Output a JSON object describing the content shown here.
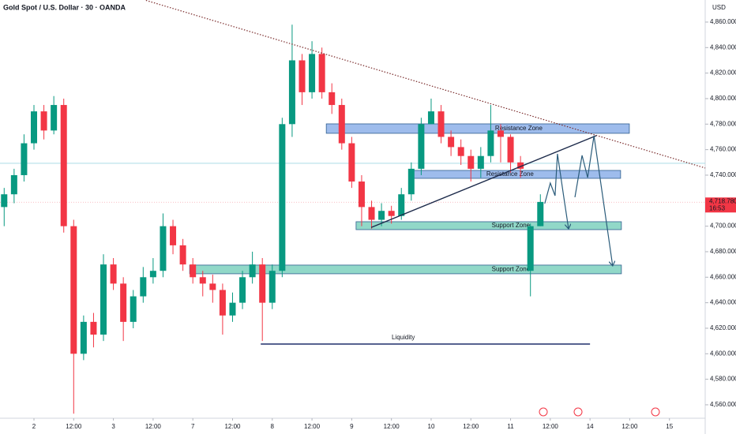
{
  "header": {
    "symbol": "Gold Spot / U.S. Dollar · 30 · OANDA",
    "currency": "USD"
  },
  "chart_data": {
    "type": "candlestick",
    "x": [
      -0.75,
      -0.5,
      -0.25,
      0,
      0.25,
      0.5,
      0.75,
      1,
      1.25,
      1.5,
      1.75,
      2,
      2.25,
      2.5,
      2.75,
      3,
      3.25,
      3.5,
      3.75,
      4,
      4.25,
      4.5,
      4.75,
      5,
      5.25,
      5.5,
      5.75,
      6,
      6.25,
      6.5,
      6.75,
      7,
      7.25,
      7.5,
      7.75,
      8,
      8.25,
      8.5,
      8.75,
      9,
      9.25,
      9.5,
      9.75,
      10,
      10.25,
      10.5,
      10.75,
      11,
      11.25,
      11.5,
      11.75,
      12,
      12.25,
      12.5,
      12.75
    ],
    "open": [
      4715,
      4725,
      4740,
      4765,
      4790,
      4775,
      4795,
      4700,
      4600,
      4625,
      4615,
      4670,
      4655,
      4625,
      4645,
      4660,
      4665,
      4700,
      4685,
      4670,
      4660,
      4655,
      4650,
      4630,
      4640,
      4660,
      4670,
      4640,
      4665,
      4780,
      4830,
      4805,
      4835,
      4805,
      4795,
      4765,
      4735,
      4715,
      4705,
      4712,
      4708,
      4725,
      4745,
      4780,
      4790,
      4770,
      4762,
      4755,
      4745,
      4755,
      4775,
      4770,
      4750,
      4665,
      4700
    ],
    "high": [
      4730,
      4745,
      4772,
      4795,
      4795,
      4802,
      4800,
      4705,
      4630,
      4632,
      4678,
      4675,
      4660,
      4650,
      4668,
      4675,
      4710,
      4705,
      4690,
      4675,
      4665,
      4662,
      4655,
      4648,
      4665,
      4680,
      4675,
      4670,
      4785,
      4858,
      4835,
      4845,
      4840,
      4812,
      4800,
      4770,
      4740,
      4720,
      4718,
      4716,
      4730,
      4750,
      4785,
      4800,
      4795,
      4775,
      4768,
      4760,
      4762,
      4795,
      4780,
      4772,
      4755,
      4702,
      4725
    ],
    "low": [
      4700,
      4718,
      4735,
      4760,
      4768,
      4772,
      4695,
      4553,
      4595,
      4605,
      4610,
      4650,
      4610,
      4620,
      4640,
      4655,
      4660,
      4678,
      4665,
      4655,
      4645,
      4640,
      4615,
      4625,
      4635,
      4655,
      4610,
      4635,
      4660,
      4770,
      4795,
      4800,
      4800,
      4788,
      4760,
      4730,
      4700,
      4698,
      4700,
      4702,
      4705,
      4720,
      4740,
      4780,
      4765,
      4755,
      4748,
      4735,
      4738,
      4750,
      4750,
      4742,
      4738,
      4645,
      4700
    ],
    "close": [
      4725,
      4740,
      4765,
      4790,
      4775,
      4795,
      4700,
      4600,
      4625,
      4615,
      4670,
      4655,
      4625,
      4645,
      4660,
      4665,
      4700,
      4685,
      4670,
      4660,
      4655,
      4650,
      4630,
      4640,
      4660,
      4670,
      4640,
      4665,
      4780,
      4830,
      4805,
      4835,
      4805,
      4795,
      4765,
      4735,
      4715,
      4705,
      4712,
      4708,
      4725,
      4745,
      4780,
      4790,
      4770,
      4762,
      4755,
      4745,
      4755,
      4775,
      4770,
      4750,
      4745,
      4700,
      4719
    ],
    "up_color": "#089981",
    "down_color": "#f23645",
    "xlim": [
      -0.855,
      16.9
    ],
    "ylim": [
      4550.7,
      4877.3
    ],
    "xticks": [
      {
        "value": 0,
        "label": "2"
      },
      {
        "value": 1,
        "label": "12:00"
      },
      {
        "value": 2,
        "label": "3"
      },
      {
        "value": 3,
        "label": "12:00"
      },
      {
        "value": 4,
        "label": "7"
      },
      {
        "value": 5,
        "label": "12:00"
      },
      {
        "value": 6,
        "label": "8"
      },
      {
        "value": 7,
        "label": "12:00"
      },
      {
        "value": 8,
        "label": "9"
      },
      {
        "value": 9,
        "label": "12:00"
      },
      {
        "value": 10,
        "label": "10"
      },
      {
        "value": 11,
        "label": "12:00"
      },
      {
        "value": 12,
        "label": "11"
      },
      {
        "value": 13,
        "label": "12:00"
      },
      {
        "value": 14,
        "label": "14"
      },
      {
        "value": 15,
        "label": "12:00"
      },
      {
        "value": 16,
        "label": "15"
      }
    ],
    "yticks": [
      {
        "value": 4560,
        "label": "4,560.000"
      },
      {
        "value": 4580,
        "label": "4,580.000"
      },
      {
        "value": 4600,
        "label": "4,600.000"
      },
      {
        "value": 4620,
        "label": "4,620.000"
      },
      {
        "value": 4640,
        "label": "4,640.000"
      },
      {
        "value": 4660,
        "label": "4,660.000"
      },
      {
        "value": 4680,
        "label": "4,680.000"
      },
      {
        "value": 4700,
        "label": "4,700.000"
      },
      {
        "value": 4720,
        "label": "4,720.000"
      },
      {
        "value": 4740,
        "label": "4,740.000"
      },
      {
        "value": 4760,
        "label": "4,760.000"
      },
      {
        "value": 4780,
        "label": "4,780.000"
      },
      {
        "value": 4800,
        "label": "4,800.000"
      },
      {
        "value": 4820,
        "label": "4,820.000"
      },
      {
        "value": 4840,
        "label": "4,840.000"
      },
      {
        "value": 4860,
        "label": "4,860.000"
      }
    ],
    "last_price": {
      "value": 4718.78,
      "label": "4,718.780"
    },
    "countdown": "16:53",
    "reference_line": 4749.3,
    "annotations": {
      "zones": [
        {
          "label": "Resistance Zone",
          "low": 4772.8,
          "high": 4780.2,
          "start": 7.36,
          "end": 14.99,
          "color": "#7ea6e6"
        },
        {
          "label": "Resistance Zone",
          "low": 4737.5,
          "high": 4743.7,
          "start": 9.54,
          "end": 14.77,
          "color": "#7ea6e6"
        },
        {
          "label": "Support Zone",
          "low": 4697.3,
          "high": 4703.5,
          "start": 8.11,
          "end": 14.79,
          "color": "#6ccbb5"
        },
        {
          "label": "Support Zone",
          "low": 4662.7,
          "high": 4669.5,
          "start": 3.92,
          "end": 14.79,
          "color": "#6ccbb5"
        }
      ],
      "liquidity": {
        "label": "Liquidity",
        "price": 4607.6,
        "start": 5.71,
        "end": 14.0,
        "color": "#1e2f6b"
      },
      "trendlines": [
        {
          "x": [
            2.82,
            16.9
          ],
          "y": [
            4877,
            4745.6
          ],
          "dotted": true
        },
        {
          "x": [
            8.49,
            14.16
          ],
          "y": [
            4699,
            4771
          ],
          "dotted": false
        }
      ],
      "projections": [
        {
          "x": [
            12.86,
            13.0,
            13.12,
            13.18,
            13.34,
            13.46
          ],
          "y": [
            4717.7,
            4733.8,
            4723.9,
            4756.7,
            4722.7,
            4697.9
          ]
        },
        {
          "x": [
            13.62,
            13.8,
            13.94,
            14.1,
            14.57
          ],
          "y": [
            4722.7,
            4755.5,
            4738.1,
            4770.9,
            4668.9
          ]
        }
      ]
    }
  }
}
